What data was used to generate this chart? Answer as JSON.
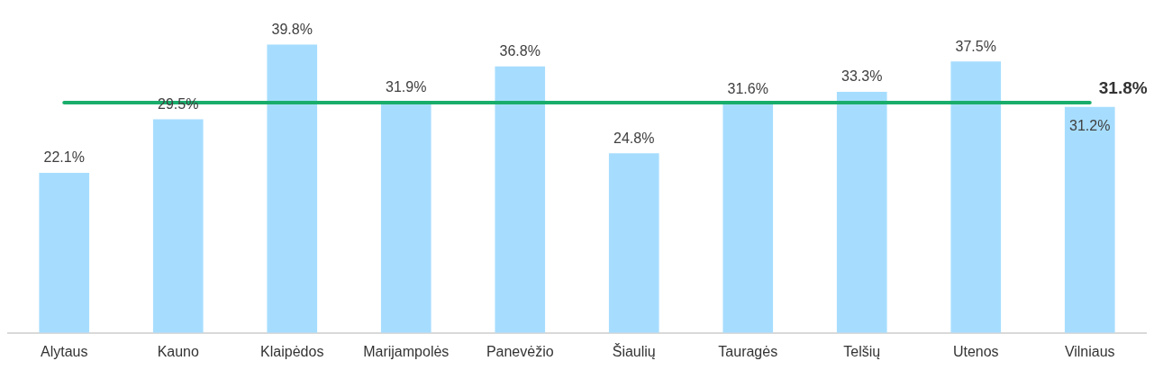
{
  "chart_data": {
    "type": "bar",
    "categories": [
      "Alytaus",
      "Kauno",
      "Klaipėdos",
      "Marijampolės",
      "Panevėžio",
      "Šiaulių",
      "Tauragės",
      "Telšių",
      "Utenos",
      "Vilniaus"
    ],
    "values": [
      22.1,
      29.5,
      39.8,
      31.9,
      36.8,
      24.8,
      31.6,
      33.3,
      37.5,
      31.2
    ],
    "value_labels": [
      "22.1%",
      "29.5%",
      "39.8%",
      "31.9%",
      "36.8%",
      "24.8%",
      "31.6%",
      "33.3%",
      "37.5%",
      "31.2%"
    ],
    "color": "#a6ddff",
    "ref_lines": [
      {
        "axis": "y",
        "value": 31.8,
        "label": "31.8%",
        "color": "#19ad6b"
      }
    ],
    "grid": false,
    "legend": false
  }
}
